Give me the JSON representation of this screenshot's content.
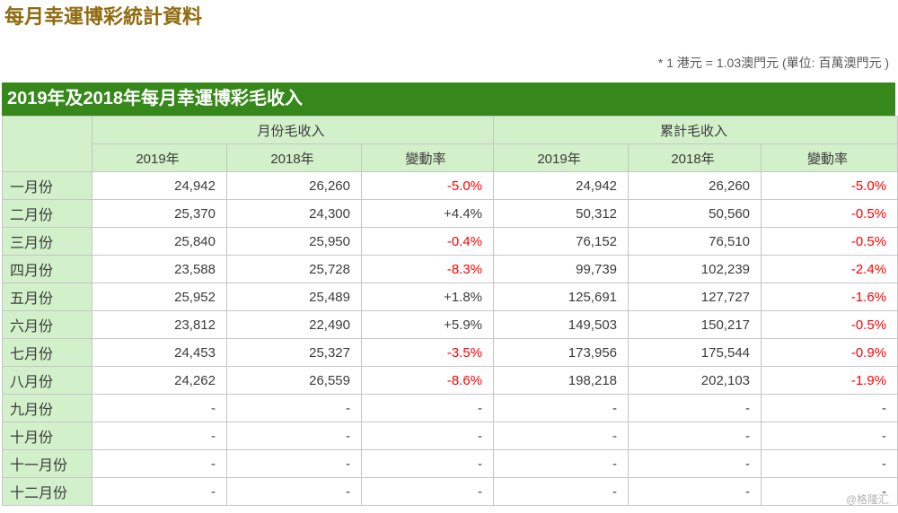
{
  "page": {
    "title": "每月幸運博彩統計資料",
    "note": "* 1 港元 = 1.03澳門元 (單位: 百萬澳門元 )",
    "watermark": "@格隆汇"
  },
  "colors": {
    "accent_green": "#36881a",
    "light_green": "#d2f0ca",
    "title_brown": "#8f6b0e",
    "negative_red": "#ff0000"
  },
  "table": {
    "caption": "2019年及2018年每月幸運博彩毛收入",
    "group_headers": [
      "月份毛收入",
      "累計毛收入"
    ],
    "col_headers": [
      "2019年",
      "2018年",
      "變動率"
    ],
    "rows": [
      {
        "month": "一月份",
        "monthly": [
          "24,942",
          "26,260",
          "-5.0%"
        ],
        "cumulative": [
          "24,942",
          "26,260",
          "-5.0%"
        ]
      },
      {
        "month": "二月份",
        "monthly": [
          "25,370",
          "24,300",
          "+4.4%"
        ],
        "cumulative": [
          "50,312",
          "50,560",
          "-0.5%"
        ]
      },
      {
        "month": "三月份",
        "monthly": [
          "25,840",
          "25,950",
          "-0.4%"
        ],
        "cumulative": [
          "76,152",
          "76,510",
          "-0.5%"
        ]
      },
      {
        "month": "四月份",
        "monthly": [
          "23,588",
          "25,728",
          "-8.3%"
        ],
        "cumulative": [
          "99,739",
          "102,239",
          "-2.4%"
        ]
      },
      {
        "month": "五月份",
        "monthly": [
          "25,952",
          "25,489",
          "+1.8%"
        ],
        "cumulative": [
          "125,691",
          "127,727",
          "-1.6%"
        ]
      },
      {
        "month": "六月份",
        "monthly": [
          "23,812",
          "22,490",
          "+5.9%"
        ],
        "cumulative": [
          "149,503",
          "150,217",
          "-0.5%"
        ]
      },
      {
        "month": "七月份",
        "monthly": [
          "24,453",
          "25,327",
          "-3.5%"
        ],
        "cumulative": [
          "173,956",
          "175,544",
          "-0.9%"
        ]
      },
      {
        "month": "八月份",
        "monthly": [
          "24,262",
          "26,559",
          "-8.6%"
        ],
        "cumulative": [
          "198,218",
          "202,103",
          "-1.9%"
        ]
      },
      {
        "month": "九月份",
        "monthly": [
          "-",
          "-",
          "-"
        ],
        "cumulative": [
          "-",
          "-",
          "-"
        ]
      },
      {
        "month": "十月份",
        "monthly": [
          "-",
          "-",
          "-"
        ],
        "cumulative": [
          "-",
          "-",
          "-"
        ]
      },
      {
        "month": "十一月份",
        "monthly": [
          "-",
          "-",
          "-"
        ],
        "cumulative": [
          "-",
          "-",
          "-"
        ]
      },
      {
        "month": "十二月份",
        "monthly": [
          "-",
          "-",
          "-"
        ],
        "cumulative": [
          "-",
          "-",
          "-"
        ]
      }
    ]
  }
}
